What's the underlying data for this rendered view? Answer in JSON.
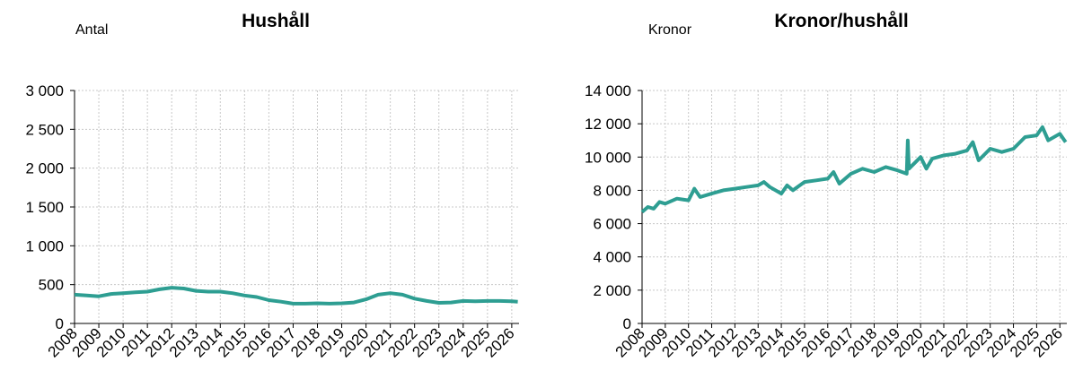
{
  "chart_data": [
    {
      "type": "line",
      "title": "Hushåll",
      "ylabel": "Antal",
      "x": [
        2008,
        2008.5,
        2009,
        2009.5,
        2010,
        2010.5,
        2011,
        2011.5,
        2012,
        2012.5,
        2013,
        2013.5,
        2014,
        2014.5,
        2015,
        2015.5,
        2016,
        2016.5,
        2017,
        2017.5,
        2018,
        2018.5,
        2019,
        2019.5,
        2020,
        2020.5,
        2021,
        2021.5,
        2022,
        2022.5,
        2023,
        2023.5,
        2024,
        2024.5,
        2025,
        2025.5,
        2026,
        2026.25
      ],
      "series": [
        {
          "name": "Hushåll",
          "color": "#2e9e92",
          "values": [
            370,
            360,
            350,
            380,
            390,
            400,
            410,
            440,
            460,
            450,
            420,
            410,
            410,
            390,
            360,
            340,
            300,
            280,
            255,
            255,
            260,
            255,
            260,
            270,
            310,
            370,
            390,
            370,
            320,
            290,
            265,
            270,
            290,
            285,
            290,
            290,
            285,
            280
          ]
        }
      ],
      "xlim": [
        2008,
        2026.3
      ],
      "xticks": [
        2008,
        2009,
        2010,
        2011,
        2012,
        2013,
        2014,
        2015,
        2016,
        2017,
        2018,
        2019,
        2020,
        2021,
        2022,
        2023,
        2024,
        2025,
        2026
      ],
      "ylim": [
        0,
        3000
      ],
      "yticks": [
        0,
        500,
        {
          "value": 1000,
          "label": "1 000"
        },
        {
          "value": 1500,
          "label": "1 500"
        },
        {
          "value": 2000,
          "label": "2 000"
        },
        {
          "value": 2500,
          "label": "2 500"
        },
        {
          "value": 3000,
          "label": "3 000"
        }
      ],
      "grid": true
    },
    {
      "type": "line",
      "title": "Kronor/hushåll",
      "ylabel": "Kronor",
      "x": [
        2008,
        2008.25,
        2008.5,
        2008.75,
        2009,
        2009.5,
        2010,
        2010.25,
        2010.5,
        2011,
        2011.5,
        2012,
        2012.5,
        2013,
        2013.25,
        2013.5,
        2014,
        2014.25,
        2014.5,
        2015,
        2015.5,
        2016,
        2016.25,
        2016.5,
        2017,
        2017.5,
        2018,
        2018.5,
        2019,
        2019.4,
        2019.45,
        2019.5,
        2020,
        2020.25,
        2020.5,
        2021,
        2021.5,
        2022,
        2022.25,
        2022.5,
        2023,
        2023.5,
        2024,
        2024.5,
        2025,
        2025.25,
        2025.5,
        2026,
        2026.25
      ],
      "series": [
        {
          "name": "Kronor/hushåll",
          "color": "#2e9e92",
          "values": [
            6700,
            7000,
            6900,
            7300,
            7200,
            7500,
            7400,
            8100,
            7600,
            7800,
            8000,
            8100,
            8200,
            8300,
            8500,
            8200,
            7800,
            8300,
            8000,
            8500,
            8600,
            8700,
            9100,
            8400,
            9000,
            9300,
            9100,
            9400,
            9200,
            9000,
            11000,
            9300,
            10000,
            9300,
            9900,
            10100,
            10200,
            10400,
            10900,
            9800,
            10500,
            10300,
            10500,
            11200,
            11300,
            11800,
            11000,
            11400,
            10900
          ]
        }
      ],
      "xlim": [
        2008,
        2026.3
      ],
      "xticks": [
        2008,
        2009,
        2010,
        2011,
        2012,
        2013,
        2014,
        2015,
        2016,
        2017,
        2018,
        2019,
        2020,
        2021,
        2022,
        2023,
        2024,
        2025,
        2026
      ],
      "ylim": [
        0,
        14000
      ],
      "yticks": [
        0,
        {
          "value": 2000,
          "label": "2 000"
        },
        {
          "value": 4000,
          "label": "4 000"
        },
        {
          "value": 6000,
          "label": "6 000"
        },
        {
          "value": 8000,
          "label": "8 000"
        },
        {
          "value": 10000,
          "label": "10 000"
        },
        {
          "value": 12000,
          "label": "12 000"
        },
        {
          "value": 14000,
          "label": "14 000"
        }
      ],
      "grid": true
    }
  ]
}
